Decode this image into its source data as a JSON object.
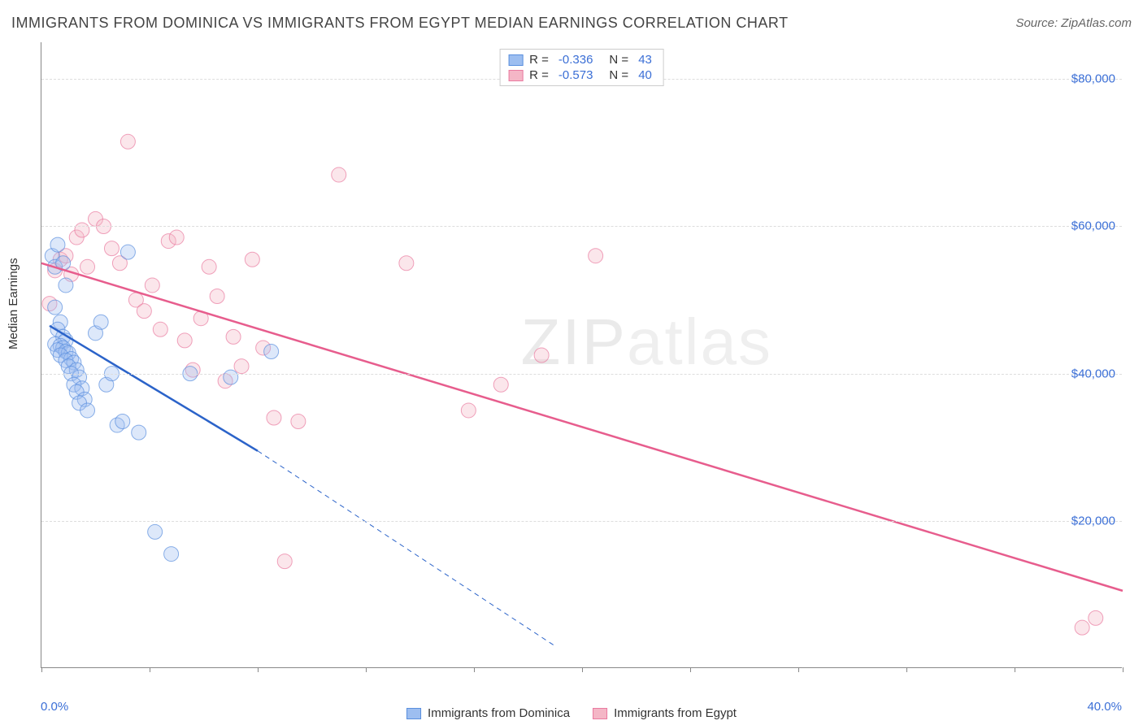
{
  "title": "IMMIGRANTS FROM DOMINICA VS IMMIGRANTS FROM EGYPT MEDIAN EARNINGS CORRELATION CHART",
  "source_label": "Source: ZipAtlas.com",
  "watermark": "ZIPatlas",
  "y_axis": {
    "label": "Median Earnings"
  },
  "chart": {
    "type": "scatter",
    "xlim": [
      0,
      40
    ],
    "ylim": [
      0,
      85000
    ],
    "x_tick_label_left": "0.0%",
    "x_tick_label_right": "40.0%",
    "x_minor_ticks": [
      0,
      4,
      8,
      12,
      16,
      20,
      24,
      28,
      32,
      36,
      40
    ],
    "y_ticks": [
      20000,
      40000,
      60000,
      80000
    ],
    "y_tick_labels": [
      "$20,000",
      "$40,000",
      "$60,000",
      "$80,000"
    ],
    "grid_color": "#dddddd",
    "background_color": "#ffffff",
    "axis_color": "#888888",
    "tick_label_color": "#3b6fd6"
  },
  "series": [
    {
      "name": "Immigrants from Dominica",
      "color_fill": "#9dbef0",
      "color_stroke": "#5a8fde",
      "trend_color": "#2b63c9",
      "R_label": "R =",
      "R": "-0.336",
      "N_label": "N =",
      "N": "43",
      "trend_solid": {
        "x1": 0.3,
        "y1": 46500,
        "x2": 8.0,
        "y2": 29500
      },
      "trend_dash": {
        "x1": 8.0,
        "y1": 29500,
        "x2": 19.0,
        "y2": 3000
      },
      "points": [
        [
          0.4,
          56000
        ],
        [
          0.5,
          54500
        ],
        [
          0.6,
          57500
        ],
        [
          0.8,
          55000
        ],
        [
          0.9,
          52000
        ],
        [
          0.5,
          49000
        ],
        [
          0.7,
          47000
        ],
        [
          0.6,
          46000
        ],
        [
          0.8,
          45000
        ],
        [
          0.9,
          44500
        ],
        [
          0.5,
          44000
        ],
        [
          0.7,
          43800
        ],
        [
          0.8,
          43500
        ],
        [
          0.6,
          43200
        ],
        [
          0.9,
          43000
        ],
        [
          1.0,
          42800
        ],
        [
          0.7,
          42500
        ],
        [
          1.1,
          42000
        ],
        [
          0.9,
          41800
        ],
        [
          1.2,
          41500
        ],
        [
          1.0,
          41000
        ],
        [
          1.3,
          40500
        ],
        [
          1.1,
          40000
        ],
        [
          1.4,
          39500
        ],
        [
          1.2,
          38500
        ],
        [
          1.5,
          38000
        ],
        [
          1.3,
          37500
        ],
        [
          1.6,
          36500
        ],
        [
          1.4,
          36000
        ],
        [
          1.7,
          35000
        ],
        [
          2.0,
          45500
        ],
        [
          2.2,
          47000
        ],
        [
          2.4,
          38500
        ],
        [
          2.6,
          40000
        ],
        [
          2.8,
          33000
        ],
        [
          3.0,
          33500
        ],
        [
          3.2,
          56500
        ],
        [
          3.6,
          32000
        ],
        [
          4.2,
          18500
        ],
        [
          4.8,
          15500
        ],
        [
          5.5,
          40000
        ],
        [
          7.0,
          39500
        ],
        [
          8.5,
          43000
        ]
      ]
    },
    {
      "name": "Immigrants from Egypt",
      "color_fill": "#f4b6c6",
      "color_stroke": "#ea7aa0",
      "trend_color": "#e75d8d",
      "R_label": "R =",
      "R": "-0.573",
      "N_label": "N =",
      "N": "40",
      "trend_solid": {
        "x1": 0.0,
        "y1": 55000,
        "x2": 40.0,
        "y2": 10500
      },
      "trend_dash": null,
      "points": [
        [
          0.3,
          49500
        ],
        [
          0.5,
          54000
        ],
        [
          0.7,
          55500
        ],
        [
          0.9,
          56000
        ],
        [
          1.1,
          53500
        ],
        [
          1.3,
          58500
        ],
        [
          1.5,
          59500
        ],
        [
          1.7,
          54500
        ],
        [
          2.0,
          61000
        ],
        [
          2.3,
          60000
        ],
        [
          2.6,
          57000
        ],
        [
          2.9,
          55000
        ],
        [
          3.2,
          71500
        ],
        [
          3.5,
          50000
        ],
        [
          3.8,
          48500
        ],
        [
          4.1,
          52000
        ],
        [
          4.4,
          46000
        ],
        [
          4.7,
          58000
        ],
        [
          5.0,
          58500
        ],
        [
          5.3,
          44500
        ],
        [
          5.6,
          40500
        ],
        [
          5.9,
          47500
        ],
        [
          6.2,
          54500
        ],
        [
          6.5,
          50500
        ],
        [
          6.8,
          39000
        ],
        [
          7.1,
          45000
        ],
        [
          7.4,
          41000
        ],
        [
          7.8,
          55500
        ],
        [
          8.2,
          43500
        ],
        [
          8.6,
          34000
        ],
        [
          9.0,
          14500
        ],
        [
          9.5,
          33500
        ],
        [
          11.0,
          67000
        ],
        [
          13.5,
          55000
        ],
        [
          15.8,
          35000
        ],
        [
          17.0,
          38500
        ],
        [
          18.5,
          42500
        ],
        [
          20.5,
          56000
        ],
        [
          38.5,
          5500
        ],
        [
          39.0,
          6800
        ]
      ]
    }
  ],
  "legend_bottom": {
    "items": [
      "Immigrants from Dominica",
      "Immigrants from Egypt"
    ]
  }
}
